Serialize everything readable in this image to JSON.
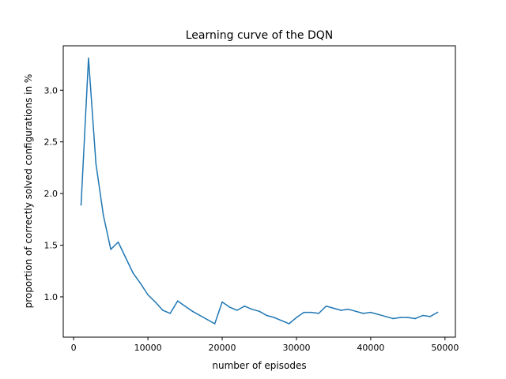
{
  "chart_data": {
    "type": "line",
    "title": "Learning curve of the DQN",
    "xlabel": "number of episodes",
    "ylabel": "proportion of correctly solved configurations in %",
    "xlim": [
      -1400,
      51400
    ],
    "ylim": [
      0.61,
      3.43
    ],
    "xticks": [
      0,
      10000,
      20000,
      30000,
      40000,
      50000
    ],
    "xtick_labels": [
      "0",
      "10000",
      "20000",
      "30000",
      "40000",
      "50000"
    ],
    "yticks": [
      1.0,
      1.5,
      2.0,
      2.5,
      3.0
    ],
    "ytick_labels": [
      "1.0",
      "1.5",
      "2.0",
      "2.5",
      "3.0"
    ],
    "grid": false,
    "series": [
      {
        "color": "#1f77b4",
        "x": [
          1000,
          2000,
          3000,
          4000,
          5000,
          6000,
          7000,
          8000,
          9000,
          10000,
          11000,
          12000,
          13000,
          14000,
          15000,
          16000,
          17000,
          18000,
          19000,
          20000,
          21000,
          22000,
          23000,
          24000,
          25000,
          26000,
          27000,
          28000,
          29000,
          30000,
          31000,
          32000,
          33000,
          34000,
          35000,
          36000,
          37000,
          38000,
          39000,
          40000,
          41000,
          42000,
          43000,
          44000,
          45000,
          46000,
          47000,
          48000,
          49000
        ],
        "y": [
          1.89,
          3.31,
          2.29,
          1.79,
          1.46,
          1.53,
          1.38,
          1.23,
          1.13,
          1.02,
          0.95,
          0.87,
          0.84,
          0.96,
          0.91,
          0.86,
          0.82,
          0.78,
          0.74,
          0.95,
          0.9,
          0.87,
          0.91,
          0.88,
          0.86,
          0.82,
          0.8,
          0.77,
          0.74,
          0.8,
          0.85,
          0.85,
          0.84,
          0.91,
          0.89,
          0.87,
          0.88,
          0.86,
          0.84,
          0.85,
          0.83,
          0.81,
          0.79,
          0.8,
          0.8,
          0.79,
          0.82,
          0.81,
          0.85
        ]
      }
    ]
  }
}
